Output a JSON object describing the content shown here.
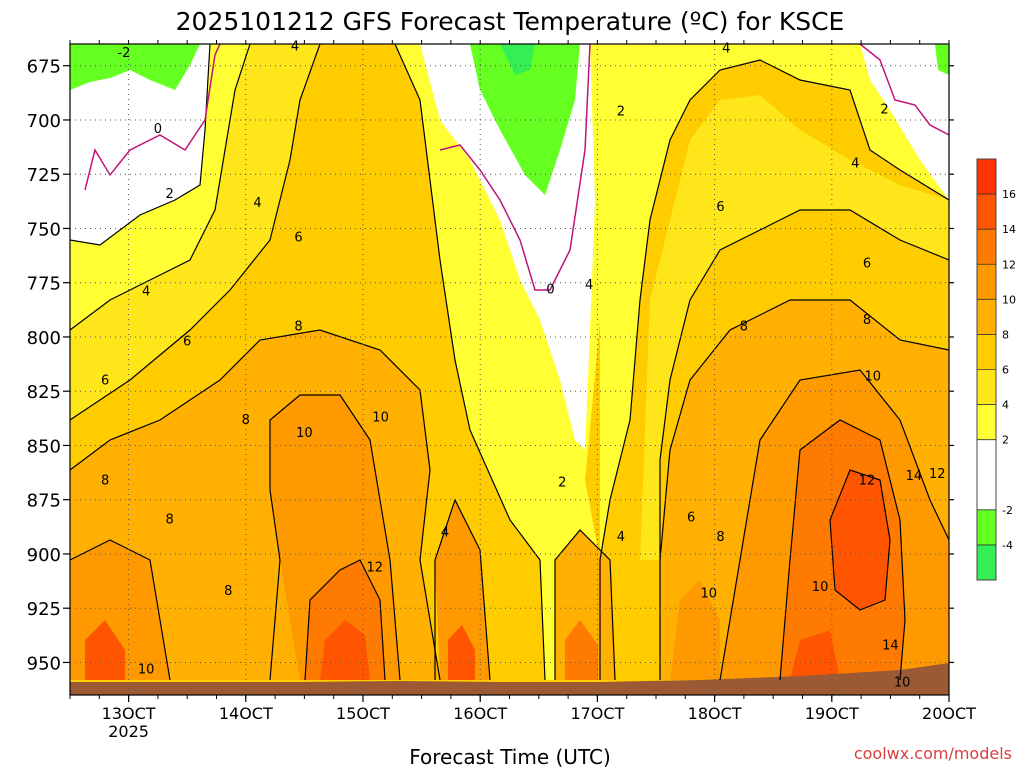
{
  "chart_data": {
    "type": "heatmap",
    "title": "2025101212 GFS Forecast Temperature (ºC) for KSCE",
    "xlabel": "Forecast Time (UTC)",
    "ylabel": "",
    "x_ticks": [
      {
        "value": 0,
        "label": "13OCT",
        "sublabel": "2025"
      },
      {
        "value": 1,
        "label": "14OCT"
      },
      {
        "value": 2,
        "label": "15OCT"
      },
      {
        "value": 3,
        "label": "16OCT"
      },
      {
        "value": 4,
        "label": "17OCT"
      },
      {
        "value": 5,
        "label": "18OCT"
      },
      {
        "value": 6,
        "label": "19OCT"
      },
      {
        "value": 7,
        "label": "20OCT"
      }
    ],
    "x_range_days": [
      -0.5,
      7
    ],
    "y_ticks": [
      675,
      700,
      725,
      750,
      775,
      800,
      825,
      850,
      875,
      900,
      925,
      950
    ],
    "y_range_hpa": [
      665,
      965
    ],
    "colorbar": {
      "levels": [
        -6,
        -4,
        -2,
        2,
        4,
        6,
        8,
        10,
        12,
        14,
        16,
        18
      ],
      "labels": [
        "-4",
        "-2",
        "2",
        "4",
        "6",
        "8",
        "10",
        "12",
        "14",
        "16"
      ],
      "colors": [
        "#33ee55",
        "#66ff22",
        "#ffffff",
        "#ffff33",
        "#ffe61a",
        "#ffcc00",
        "#ffb000",
        "#ff9900",
        "#ff7a00",
        "#ff5500",
        "#ff3300"
      ]
    },
    "contour_labels": [
      {
        "text": "-2",
        "day": -0.04,
        "p": 671
      },
      {
        "text": "0",
        "day": 0.25,
        "p": 706
      },
      {
        "text": "2",
        "day": 0.35,
        "p": 736
      },
      {
        "text": "4",
        "day": 1.42,
        "p": 668
      },
      {
        "text": "4",
        "day": 1.1,
        "p": 740
      },
      {
        "text": "4",
        "day": 0.15,
        "p": 781
      },
      {
        "text": "6",
        "day": 1.45,
        "p": 756
      },
      {
        "text": "6",
        "day": 0.5,
        "p": 804
      },
      {
        "text": "6",
        "day": -0.2,
        "p": 822
      },
      {
        "text": "8",
        "day": 1.0,
        "p": 840
      },
      {
        "text": "8",
        "day": 1.45,
        "p": 797
      },
      {
        "text": "8",
        "day": -0.2,
        "p": 868
      },
      {
        "text": "8",
        "day": 0.35,
        "p": 886
      },
      {
        "text": "8",
        "day": 0.85,
        "p": 919
      },
      {
        "text": "10",
        "day": 1.5,
        "p": 846
      },
      {
        "text": "10",
        "day": 2.15,
        "p": 839
      },
      {
        "text": "12",
        "day": 2.1,
        "p": 908
      },
      {
        "text": "10",
        "day": 0.15,
        "p": 955
      },
      {
        "text": "0",
        "day": 3.6,
        "p": 780
      },
      {
        "text": "2",
        "day": 3.7,
        "p": 869
      },
      {
        "text": "4",
        "day": 2.7,
        "p": 892
      },
      {
        "text": "4",
        "day": 3.93,
        "p": 778
      },
      {
        "text": "2",
        "day": 4.2,
        "p": 698
      },
      {
        "text": "4",
        "day": 5.1,
        "p": 669
      },
      {
        "text": "2",
        "day": 6.45,
        "p": 697
      },
      {
        "text": "4",
        "day": 6.2,
        "p": 722
      },
      {
        "text": "6",
        "day": 5.05,
        "p": 742
      },
      {
        "text": "6",
        "day": 6.3,
        "p": 768
      },
      {
        "text": "8",
        "day": 5.25,
        "p": 797
      },
      {
        "text": "8",
        "day": 6.3,
        "p": 794
      },
      {
        "text": "10",
        "day": 6.35,
        "p": 820
      },
      {
        "text": "12",
        "day": 6.9,
        "p": 865
      },
      {
        "text": "14",
        "day": 6.7,
        "p": 866
      },
      {
        "text": "12",
        "day": 6.3,
        "p": 868
      },
      {
        "text": "6",
        "day": 4.8,
        "p": 885
      },
      {
        "text": "4",
        "day": 4.2,
        "p": 894
      },
      {
        "text": "8",
        "day": 5.05,
        "p": 894
      },
      {
        "text": "10",
        "day": 4.95,
        "p": 920
      },
      {
        "text": "10",
        "day": 5.9,
        "p": 917
      },
      {
        "text": "14",
        "day": 6.5,
        "p": 944
      },
      {
        "text": "10",
        "day": 6.6,
        "p": 961
      }
    ]
  },
  "watermark": "coolwx.com/models"
}
